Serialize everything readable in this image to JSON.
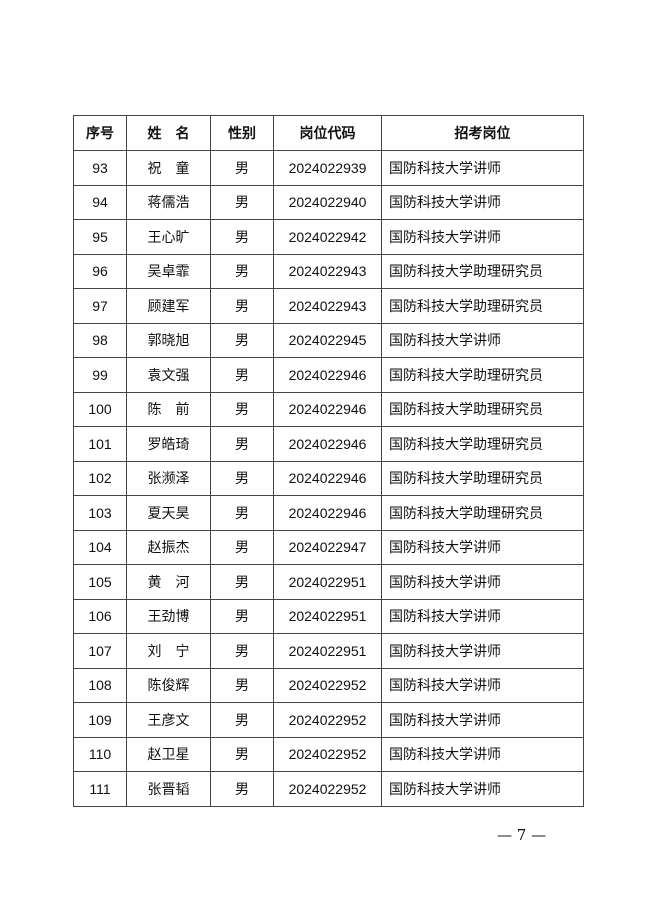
{
  "table": {
    "headers": [
      "序号",
      "姓　名",
      "性别",
      "岗位代码",
      "招考岗位"
    ],
    "rows": [
      [
        "93",
        "祝　童",
        "男",
        "2024022939",
        "国防科技大学讲师"
      ],
      [
        "94",
        "蒋儒浩",
        "男",
        "2024022940",
        "国防科技大学讲师"
      ],
      [
        "95",
        "王心旷",
        "男",
        "2024022942",
        "国防科技大学讲师"
      ],
      [
        "96",
        "吴卓霏",
        "男",
        "2024022943",
        "国防科技大学助理研究员"
      ],
      [
        "97",
        "顾建军",
        "男",
        "2024022943",
        "国防科技大学助理研究员"
      ],
      [
        "98",
        "郭晓旭",
        "男",
        "2024022945",
        "国防科技大学讲师"
      ],
      [
        "99",
        "袁文强",
        "男",
        "2024022946",
        "国防科技大学助理研究员"
      ],
      [
        "100",
        "陈　前",
        "男",
        "2024022946",
        "国防科技大学助理研究员"
      ],
      [
        "101",
        "罗皓琦",
        "男",
        "2024022946",
        "国防科技大学助理研究员"
      ],
      [
        "102",
        "张濒泽",
        "男",
        "2024022946",
        "国防科技大学助理研究员"
      ],
      [
        "103",
        "夏天昊",
        "男",
        "2024022946",
        "国防科技大学助理研究员"
      ],
      [
        "104",
        "赵振杰",
        "男",
        "2024022947",
        "国防科技大学讲师"
      ],
      [
        "105",
        "黄　河",
        "男",
        "2024022951",
        "国防科技大学讲师"
      ],
      [
        "106",
        "王劲博",
        "男",
        "2024022951",
        "国防科技大学讲师"
      ],
      [
        "107",
        "刘　宁",
        "男",
        "2024022951",
        "国防科技大学讲师"
      ],
      [
        "108",
        "陈俊辉",
        "男",
        "2024022952",
        "国防科技大学讲师"
      ],
      [
        "109",
        "王彦文",
        "男",
        "2024022952",
        "国防科技大学讲师"
      ],
      [
        "110",
        "赵卫星",
        "男",
        "2024022952",
        "国防科技大学讲师"
      ],
      [
        "111",
        "张晋韬",
        "男",
        "2024022952",
        "国防科技大学讲师"
      ]
    ]
  },
  "footer": {
    "page_number": "— 7 —"
  }
}
